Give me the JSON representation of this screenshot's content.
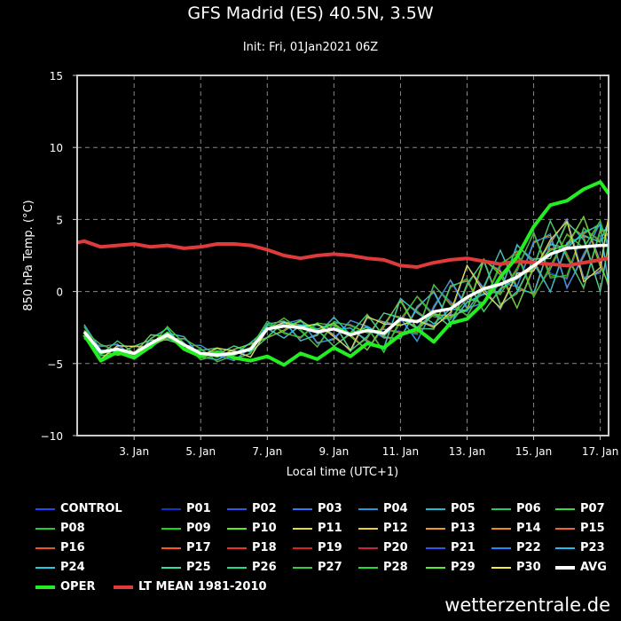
{
  "title": "GFS Madrid (ES) 40.5N, 3.5W",
  "subtitle": "Init: Fri, 01Jan2021 06Z",
  "source": "wetterzentrale.de",
  "chart_data": {
    "type": "line",
    "xlabel": "Local time (UTC+1)",
    "ylabel": "850 hPa Temp. (°C)",
    "xlim": [
      1.29,
      17.25
    ],
    "ylim": [
      -10,
      15
    ],
    "x_ticks": [
      3,
      5,
      7,
      9,
      11,
      13,
      15,
      17
    ],
    "x_tick_labels": [
      "3. Jan",
      "5. Jan",
      "7. Jan",
      "9. Jan",
      "11. Jan",
      "13. Jan",
      "15. Jan",
      "17. Jan"
    ],
    "y_ticks": [
      -10,
      -5,
      0,
      5,
      10,
      15
    ],
    "y_tick_labels": [
      "−10",
      "−5",
      "0",
      "5",
      "10",
      "15"
    ],
    "grid": true,
    "legend_position": "bottom",
    "series": [
      {
        "name": "AVG",
        "color": "#ffffff",
        "x": [
          1.5,
          2,
          2.5,
          3,
          3.5,
          4,
          4.5,
          5,
          5.5,
          6,
          6.5,
          7,
          7.5,
          8,
          8.5,
          9,
          9.5,
          10,
          10.5,
          11,
          11.5,
          12,
          12.5,
          13,
          13.5,
          14,
          14.5,
          15,
          15.5,
          16,
          16.5,
          17,
          17.25
        ],
        "values": [
          -2.8,
          -4.2,
          -4.0,
          -4.3,
          -3.6,
          -3.0,
          -3.7,
          -4.3,
          -4.4,
          -4.3,
          -4.0,
          -2.6,
          -2.4,
          -2.5,
          -2.8,
          -2.6,
          -3.0,
          -2.7,
          -2.9,
          -1.9,
          -2.1,
          -1.4,
          -1.2,
          -0.4,
          0.2,
          0.5,
          1.0,
          1.8,
          2.6,
          3.0,
          3.1,
          3.2,
          3.2
        ]
      },
      {
        "name": "OPER",
        "color": "#22ee22",
        "x": [
          1.5,
          2,
          2.5,
          3,
          3.5,
          4,
          4.5,
          5,
          5.5,
          6,
          6.5,
          7,
          7.5,
          8,
          8.5,
          9,
          9.5,
          10,
          10.5,
          11,
          11.5,
          12,
          12.5,
          13,
          13.5,
          14,
          14.5,
          15,
          15.5,
          16,
          16.5,
          17,
          17.25
        ],
        "values": [
          -3.0,
          -4.8,
          -4.2,
          -4.6,
          -3.8,
          -2.9,
          -4.0,
          -4.5,
          -4.2,
          -4.6,
          -4.8,
          -4.5,
          -5.1,
          -4.3,
          -4.7,
          -3.9,
          -4.5,
          -3.6,
          -3.9,
          -3.0,
          -2.6,
          -3.5,
          -2.2,
          -1.9,
          -0.8,
          1.0,
          2.4,
          4.5,
          6.0,
          6.3,
          7.1,
          7.6,
          6.8
        ]
      },
      {
        "name": "LT MEAN 1981-2010",
        "color": "#e03a3a",
        "x": [
          1.29,
          1.5,
          2,
          2.5,
          3,
          3.5,
          4,
          4.5,
          5,
          5.5,
          6,
          6.5,
          7,
          7.5,
          8,
          8.5,
          9,
          9.5,
          10,
          10.5,
          11,
          11.5,
          12,
          12.5,
          13,
          13.5,
          14,
          14.5,
          15,
          15.5,
          16,
          16.5,
          17,
          17.25
        ],
        "values": [
          3.4,
          3.5,
          3.1,
          3.2,
          3.3,
          3.1,
          3.2,
          3.0,
          3.1,
          3.3,
          3.3,
          3.2,
          2.9,
          2.5,
          2.3,
          2.5,
          2.6,
          2.5,
          2.3,
          2.2,
          1.8,
          1.7,
          2.0,
          2.2,
          2.3,
          2.1,
          1.9,
          2.1,
          2.0,
          1.9,
          1.8,
          2.0,
          2.2,
          2.3
        ]
      }
    ],
    "ensemble_members": [
      "CONTROL",
      "P01",
      "P02",
      "P03",
      "P04",
      "P05",
      "P06",
      "P07",
      "P08",
      "P09",
      "P10",
      "P11",
      "P12",
      "P13",
      "P14",
      "P15",
      "P16",
      "P17",
      "P18",
      "P19",
      "P20",
      "P21",
      "P22",
      "P23",
      "P24",
      "P25",
      "P26",
      "P27",
      "P28",
      "P29",
      "P30"
    ],
    "ensemble_colors": [
      "#2244ff",
      "#1133cc",
      "#3355ee",
      "#3377ff",
      "#2299dd",
      "#22bbcc",
      "#22cc66",
      "#33dd44",
      "#22cc33",
      "#11dd11",
      "#55ee22",
      "#dddd33",
      "#eecc33",
      "#ee9922",
      "#ee8822",
      "#ee6633",
      "#ee5522",
      "#ff5522",
      "#ee3322",
      "#dd2222",
      "#cc2244",
      "#3355ee",
      "#2288ff",
      "#22bbee",
      "#22ccdd",
      "#33ddaa",
      "#22dd88",
      "#33cc44",
      "#22dd33",
      "#55ee33",
      "#eeee44"
    ]
  },
  "legend": {
    "rows": [
      [
        "CONTROL",
        "P01",
        "P02",
        "P03",
        "P04",
        "P05",
        "P06",
        "P07"
      ],
      [
        "P08",
        "P09",
        "P10",
        "P11",
        "P12",
        "P13",
        "P14",
        "P15"
      ],
      [
        "P16",
        "P17",
        "P18",
        "P19",
        "P20",
        "P21",
        "P22",
        "P23"
      ],
      [
        "P24",
        "P25",
        "P26",
        "P27",
        "P28",
        "P29",
        "P30",
        "AVG"
      ],
      [
        "OPER",
        "LT MEAN 1981-2010"
      ]
    ]
  }
}
